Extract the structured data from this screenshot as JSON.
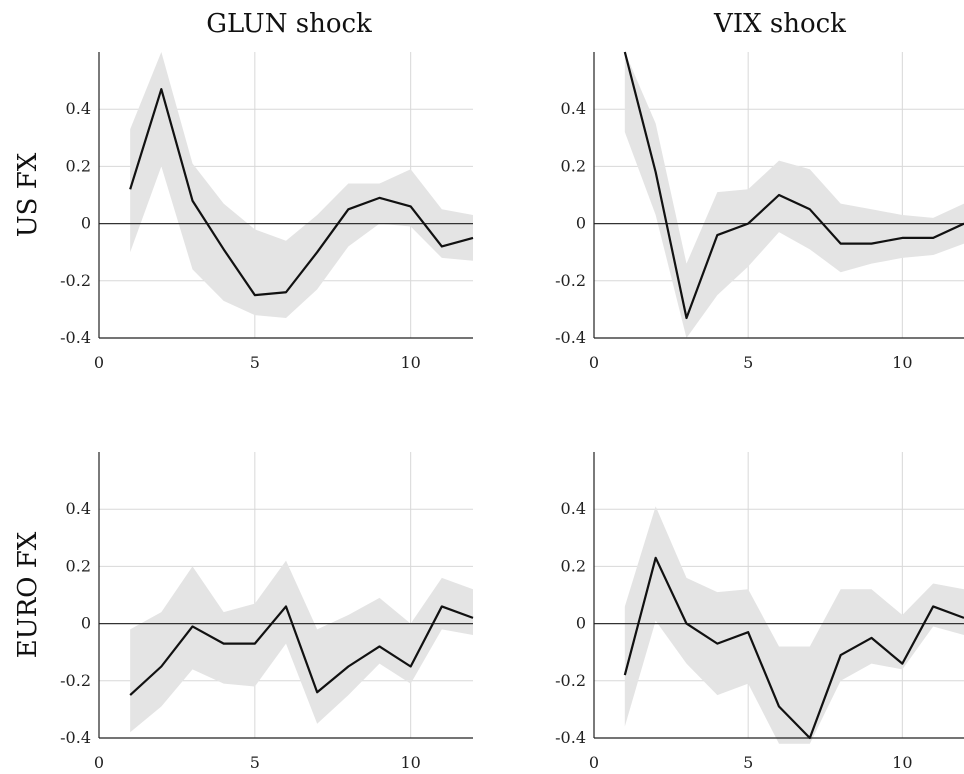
{
  "col_titles": [
    "GLUN shock",
    "VIX shock"
  ],
  "row_titles": [
    "US FX",
    "EURO FX"
  ],
  "chart_data": [
    {
      "type": "line",
      "panel": "US FX / GLUN shock",
      "x": [
        1,
        2,
        3,
        4,
        5,
        6,
        7,
        8,
        9,
        10,
        11,
        12
      ],
      "series": [
        {
          "values": [
            0.12,
            0.47,
            0.08,
            -0.09,
            -0.25,
            -0.24,
            -0.1,
            0.05,
            0.09,
            0.06,
            -0.08,
            -0.05
          ]
        }
      ],
      "band": {
        "upper": [
          0.33,
          0.6,
          0.21,
          0.07,
          -0.02,
          -0.06,
          0.03,
          0.14,
          0.14,
          0.19,
          0.05,
          0.03
        ],
        "lower": [
          -0.1,
          0.2,
          -0.16,
          -0.27,
          -0.32,
          -0.33,
          -0.23,
          -0.08,
          0.0,
          -0.01,
          -0.12,
          -0.13
        ]
      },
      "xlim": [
        0,
        12
      ],
      "ylim": [
        -0.4,
        0.6
      ],
      "xticks": [
        0,
        5,
        10
      ],
      "yticks": [
        -0.4,
        -0.2,
        0,
        0.2,
        0.4
      ],
      "ytick_labels": [
        "-0.4",
        "-0.2",
        "0",
        "0.2",
        "0.4"
      ],
      "grid": true
    },
    {
      "type": "line",
      "panel": "US FX / VIX shock",
      "x": [
        1,
        2,
        3,
        4,
        5,
        6,
        7,
        8,
        9,
        10,
        11,
        12
      ],
      "series": [
        {
          "values": [
            0.6,
            0.18,
            -0.33,
            -0.04,
            0.0,
            0.1,
            0.05,
            -0.07,
            -0.07,
            -0.05,
            -0.05,
            0.0
          ]
        }
      ],
      "band": {
        "upper": [
          0.6,
          0.35,
          -0.14,
          0.11,
          0.12,
          0.22,
          0.19,
          0.07,
          0.05,
          0.03,
          0.02,
          0.07
        ],
        "lower": [
          0.32,
          0.03,
          -0.4,
          -0.25,
          -0.15,
          -0.03,
          -0.09,
          -0.17,
          -0.14,
          -0.12,
          -0.11,
          -0.07
        ]
      },
      "xlim": [
        0,
        12
      ],
      "ylim": [
        -0.4,
        0.6
      ],
      "xticks": [
        0,
        5,
        10
      ],
      "yticks": [
        -0.4,
        -0.2,
        0,
        0.2,
        0.4
      ],
      "ytick_labels": [
        "-0.4",
        "-0.2",
        "0",
        "0.2",
        "0.4"
      ],
      "grid": true
    },
    {
      "type": "line",
      "panel": "EURO FX / GLUN shock",
      "x": [
        1,
        2,
        3,
        4,
        5,
        6,
        7,
        8,
        9,
        10,
        11,
        12
      ],
      "series": [
        {
          "values": [
            -0.25,
            -0.15,
            -0.01,
            -0.07,
            -0.07,
            0.06,
            -0.24,
            -0.15,
            -0.08,
            -0.15,
            0.06,
            0.02
          ]
        }
      ],
      "band": {
        "upper": [
          -0.02,
          0.04,
          0.2,
          0.04,
          0.07,
          0.22,
          -0.02,
          0.03,
          0.09,
          0.0,
          0.16,
          0.12
        ],
        "lower": [
          -0.38,
          -0.29,
          -0.16,
          -0.21,
          -0.22,
          -0.07,
          -0.35,
          -0.25,
          -0.14,
          -0.21,
          -0.02,
          -0.04
        ]
      },
      "xlim": [
        0,
        12
      ],
      "ylim": [
        -0.4,
        0.6
      ],
      "xticks": [
        0,
        5,
        10
      ],
      "yticks": [
        -0.4,
        -0.2,
        0,
        0.2,
        0.4
      ],
      "ytick_labels": [
        "-0.4",
        "-0.2",
        "0",
        "0.2",
        "0.4"
      ],
      "grid": true
    },
    {
      "type": "line",
      "panel": "EURO FX / VIX shock",
      "x": [
        1,
        2,
        3,
        4,
        5,
        6,
        7,
        8,
        9,
        10,
        11,
        12
      ],
      "series": [
        {
          "values": [
            -0.18,
            0.23,
            0.0,
            -0.07,
            -0.03,
            -0.29,
            -0.4,
            -0.11,
            -0.05,
            -0.14,
            0.06,
            0.02
          ]
        }
      ],
      "band": {
        "upper": [
          0.06,
          0.41,
          0.16,
          0.11,
          0.12,
          -0.08,
          -0.08,
          0.12,
          0.12,
          0.03,
          0.14,
          0.12
        ],
        "lower": [
          -0.36,
          0.01,
          -0.14,
          -0.25,
          -0.21,
          -0.42,
          -0.42,
          -0.2,
          -0.14,
          -0.16,
          -0.01,
          -0.04
        ]
      },
      "xlim": [
        0,
        12
      ],
      "ylim": [
        -0.4,
        0.6
      ],
      "xticks": [
        0,
        5,
        10
      ],
      "yticks": [
        -0.4,
        -0.2,
        0,
        0.2,
        0.4
      ],
      "ytick_labels": [
        "-0.4",
        "-0.2",
        "0",
        "0.2",
        "0.4"
      ],
      "grid": true
    }
  ]
}
